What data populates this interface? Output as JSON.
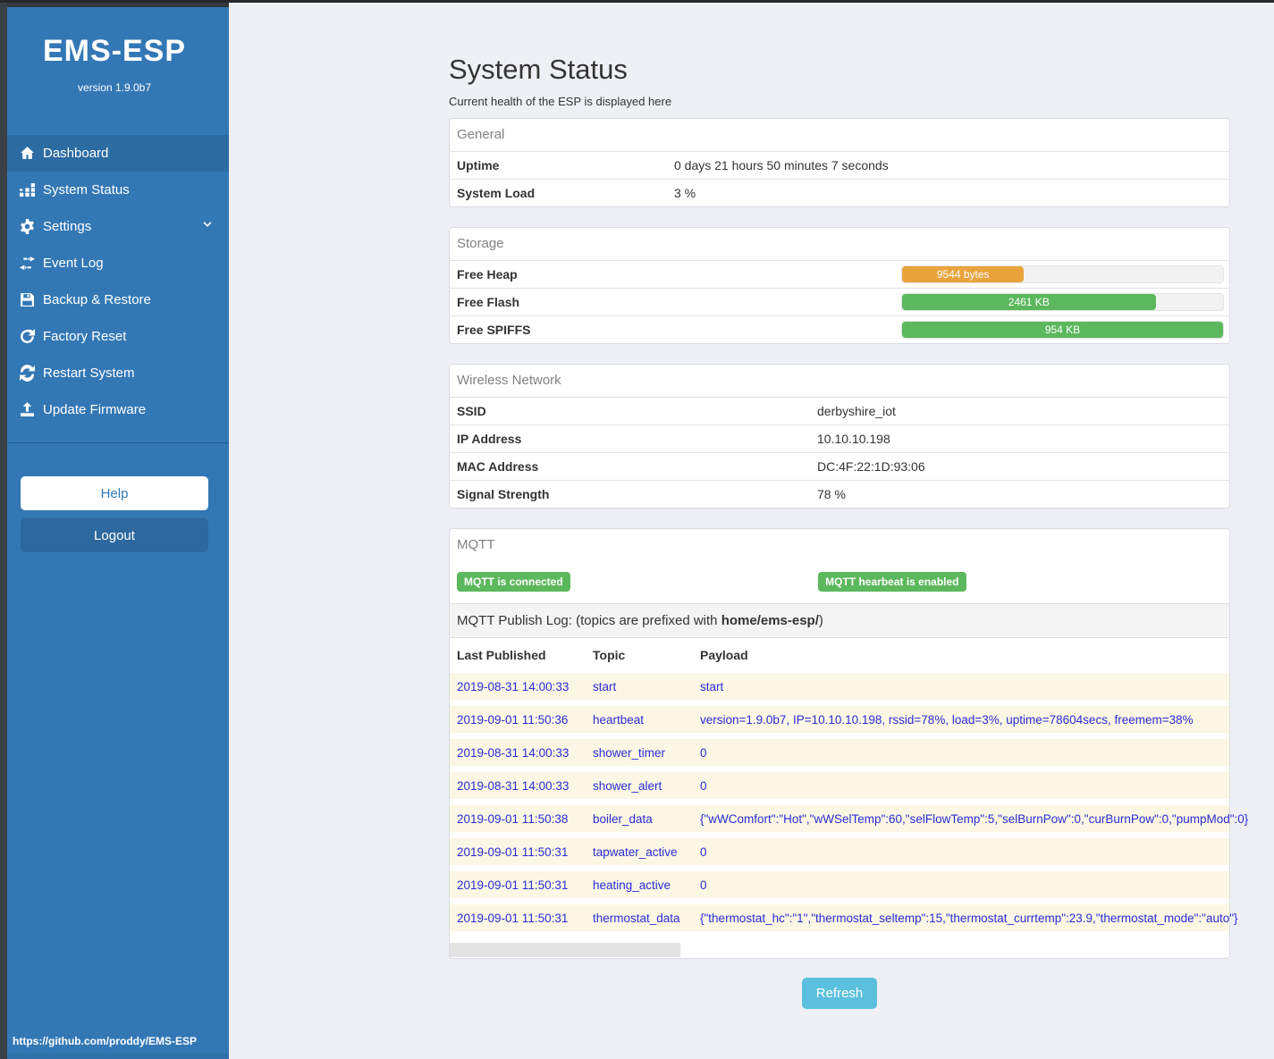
{
  "colors": {
    "sidebar_blue": "#3378b5",
    "badge_green": "#5cb85c",
    "bar_orange": "#e9a33c",
    "bar_green": "#5cb85c",
    "refresh_blue": "#5bc0de"
  },
  "sidebar": {
    "title": "EMS-ESP",
    "version": "version 1.9.0b7",
    "items": [
      {
        "label": "Dashboard",
        "icon": "home-icon",
        "active": true
      },
      {
        "label": "System Status",
        "icon": "status-blocks-icon",
        "active": false
      },
      {
        "label": "Settings",
        "icon": "gear-icon",
        "active": false,
        "chevron": "down"
      },
      {
        "label": "Event Log",
        "icon": "exchange-icon",
        "active": false
      },
      {
        "label": "Backup & Restore",
        "icon": "floppy-icon",
        "active": false
      },
      {
        "label": "Factory Reset",
        "icon": "redo-icon",
        "active": false
      },
      {
        "label": "Restart System",
        "icon": "sync-icon",
        "active": false
      },
      {
        "label": "Update Firmware",
        "icon": "upload-icon",
        "active": false
      }
    ],
    "help_label": "Help",
    "logout_label": "Logout",
    "footer_link": "https://github.com/proddy/EMS-ESP"
  },
  "header": {
    "title": "System Status",
    "subtitle": "Current health of the ESP is displayed here"
  },
  "general": {
    "title": "General",
    "rows": [
      {
        "label": "Uptime",
        "value": "0 days 21 hours 50 minutes 7 seconds"
      },
      {
        "label": "System Load",
        "value": "3 %"
      }
    ]
  },
  "storage": {
    "title": "Storage",
    "rows": [
      {
        "label": "Free Heap",
        "bar_label": "9544 bytes",
        "percent": 38,
        "color": "#e9a33c"
      },
      {
        "label": "Free Flash",
        "bar_label": "2461 KB",
        "percent": 79,
        "color": "#5cb85c"
      },
      {
        "label": "Free SPIFFS",
        "bar_label": "954 KB",
        "percent": 100,
        "color": "#5cb85c"
      }
    ]
  },
  "wireless": {
    "title": "Wireless Network",
    "rows": [
      {
        "label": "SSID",
        "value": "derbyshire_iot"
      },
      {
        "label": "IP Address",
        "value": "10.10.10.198"
      },
      {
        "label": "MAC Address",
        "value": "DC:4F:22:1D:93:06"
      },
      {
        "label": "Signal Strength",
        "value": "78 %"
      }
    ]
  },
  "mqtt": {
    "title": "MQTT",
    "badge_connected": "MQTT is connected",
    "badge_heartbeat": "MQTT hearbeat is enabled",
    "publish_log_prefix": "MQTT Publish Log: (topics are prefixed with ",
    "publish_log_topic_root": "home/ems-esp/",
    "publish_log_suffix": ")",
    "table": {
      "headers": [
        "Last Published",
        "Topic",
        "Payload"
      ],
      "rows": [
        {
          "time": "2019-08-31 14:00:33",
          "topic": "start",
          "payload": "start"
        },
        {
          "time": "2019-09-01 11:50:36",
          "topic": "heartbeat",
          "payload": "version=1.9.0b7, IP=10.10.10.198, rssid=78%, load=3%, uptime=78604secs, freemem=38%"
        },
        {
          "time": "2019-08-31 14:00:33",
          "topic": "shower_timer",
          "payload": "0"
        },
        {
          "time": "2019-08-31 14:00:33",
          "topic": "shower_alert",
          "payload": "0"
        },
        {
          "time": "2019-09-01 11:50:38",
          "topic": "boiler_data",
          "payload": "{\"wWComfort\":\"Hot\",\"wWSelTemp\":60,\"selFlowTemp\":5,\"selBurnPow\":0,\"curBurnPow\":0,\"pumpMod\":0}"
        },
        {
          "time": "2019-09-01 11:50:31",
          "topic": "tapwater_active",
          "payload": "0"
        },
        {
          "time": "2019-09-01 11:50:31",
          "topic": "heating_active",
          "payload": "0"
        },
        {
          "time": "2019-09-01 11:50:31",
          "topic": "thermostat_data",
          "payload": "{\"thermostat_hc\":\"1\",\"thermostat_seltemp\":15,\"thermostat_currtemp\":23.9,\"thermostat_mode\":\"auto\"}"
        }
      ]
    }
  },
  "refresh_label": "Refresh"
}
